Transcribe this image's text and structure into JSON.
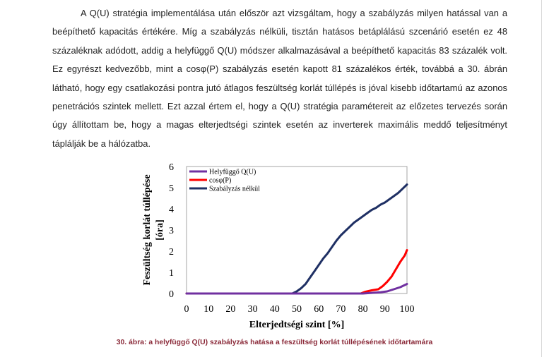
{
  "body_text": {
    "paragraph": "A Q(U) stratégia implementálása után először azt vizsgáltam, hogy a szabályzás milyen hatással van a beépíthető kapacitás értékére. Míg a szabályzás nélküli, tisztán hatásos betáplálású szcenárió esetén ez 48 százaléknak adódott, addig a helyfüggő Q(U) módszer alkalmazásával a beépíthető kapacitás 83 százalék volt. Ez egyrészt kedvezőbb, mint a cosφ(P) szabályzás esetén kapott 81 százalékos érték, továbbá a 30. ábrán látható, hogy egy csatlakozási pontra jutó átlagos feszültség korlát túllépés is jóval kisebb időtartamú az azonos penetrációs szintek mellett. Ezt azzal értem el, hogy a Q(U) stratégia paramétereit az előzetes tervezés során úgy állítottam be, hogy a magas elterjedtségi szintek esetén az inverterek maximális meddő teljesítményt táplálják be a hálózatba."
  },
  "figure": {
    "caption": "30. ábra: a helyfüggő Q(U) szabályzás hatása a feszültség korlát túllépésének időtartamára"
  },
  "chart_data": {
    "type": "line",
    "title": "",
    "xlabel": "Elterjedtségi szint [%]",
    "ylabel_line1": "Feszültség korlát túllépése",
    "ylabel_line2": "[óra]",
    "xlim": [
      0,
      100
    ],
    "ylim": [
      0,
      6
    ],
    "xticks": [
      "0",
      "10",
      "20",
      "30",
      "40",
      "50",
      "60",
      "70",
      "80",
      "90",
      "100"
    ],
    "yticks": [
      "0",
      "1",
      "2",
      "3",
      "4",
      "5",
      "6"
    ],
    "grid": false,
    "legend_position": "top-left",
    "series": [
      {
        "name": "Helyfüggő Q(U)",
        "color": "#7030a0",
        "points": [
          [
            0,
            0
          ],
          [
            80,
            0
          ],
          [
            84,
            0.03
          ],
          [
            88,
            0.06
          ],
          [
            91,
            0.1
          ],
          [
            94,
            0.2
          ],
          [
            97,
            0.3
          ],
          [
            100,
            0.45
          ]
        ]
      },
      {
        "name": "cosφ(P)",
        "color": "#ff0000",
        "points": [
          [
            0,
            0
          ],
          [
            79,
            0
          ],
          [
            81,
            0.08
          ],
          [
            84,
            0.15
          ],
          [
            87,
            0.2
          ],
          [
            89,
            0.35
          ],
          [
            91,
            0.55
          ],
          [
            93,
            0.8
          ],
          [
            95,
            1.15
          ],
          [
            97,
            1.5
          ],
          [
            99,
            1.8
          ],
          [
            100,
            2.05
          ]
        ]
      },
      {
        "name": "Szabályzás nélkül",
        "color": "#1f3064",
        "points": [
          [
            0,
            0
          ],
          [
            48,
            0
          ],
          [
            50,
            0.1
          ],
          [
            52,
            0.25
          ],
          [
            54,
            0.45
          ],
          [
            56,
            0.75
          ],
          [
            58,
            1.05
          ],
          [
            60,
            1.35
          ],
          [
            62,
            1.65
          ],
          [
            64,
            1.9
          ],
          [
            66,
            2.2
          ],
          [
            68,
            2.5
          ],
          [
            70,
            2.75
          ],
          [
            72,
            2.95
          ],
          [
            74,
            3.15
          ],
          [
            76,
            3.35
          ],
          [
            78,
            3.5
          ],
          [
            80,
            3.65
          ],
          [
            82,
            3.8
          ],
          [
            84,
            3.95
          ],
          [
            86,
            4.05
          ],
          [
            88,
            4.2
          ],
          [
            90,
            4.3
          ],
          [
            92,
            4.45
          ],
          [
            94,
            4.6
          ],
          [
            96,
            4.75
          ],
          [
            98,
            4.95
          ],
          [
            100,
            5.15
          ]
        ]
      }
    ]
  }
}
